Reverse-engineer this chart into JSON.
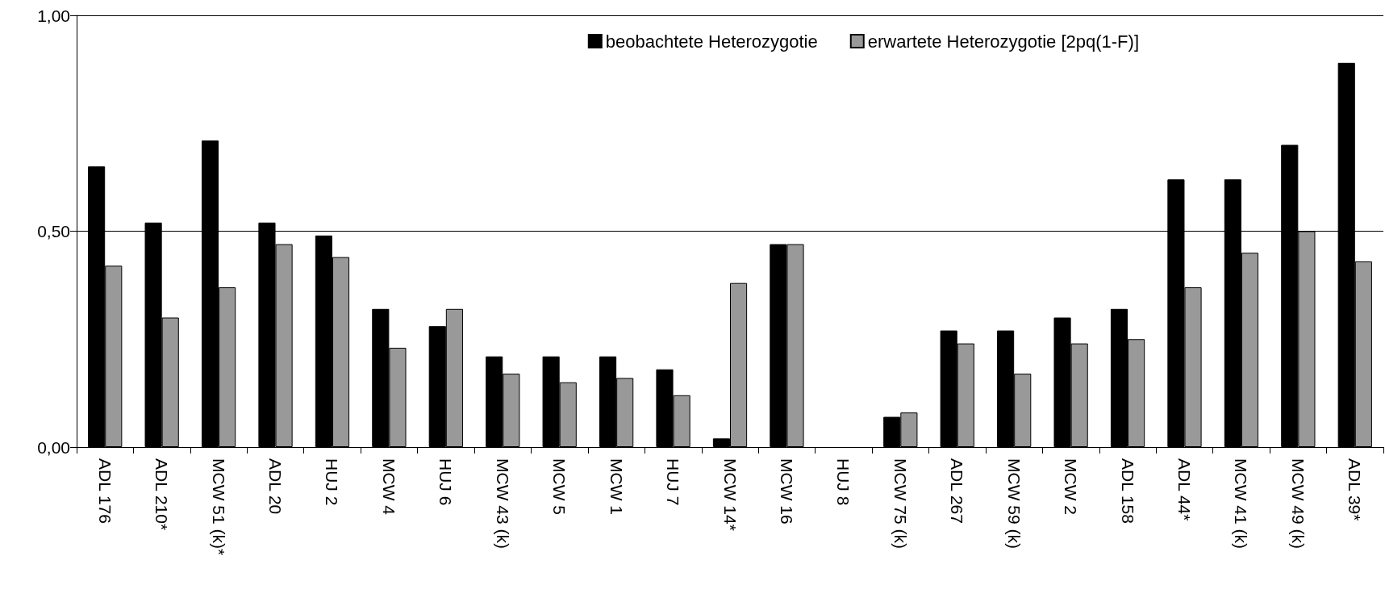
{
  "chart_data": {
    "type": "bar",
    "categories": [
      "ADL 176",
      "ADL 210*",
      "MCW 51 (k)*",
      "ADL 20",
      "HUJ 2",
      "MCW 4",
      "HUJ 6",
      "MCW 43 (k)",
      "MCW 5",
      "MCW 1",
      "HUJ 7",
      "MCW 14*",
      "MCW 16",
      "HUJ 8",
      "MCW 75 (k)",
      "ADL 267",
      "MCW 59 (k)",
      "MCW 2",
      "ADL 158",
      "ADL 44*",
      "MCW 41 (k)",
      "MCW 49 (k)",
      "ADL 39*"
    ],
    "series": [
      {
        "name": "beobachtete Heterozygotie",
        "color": "#000000",
        "values": [
          0.65,
          0.52,
          0.71,
          0.52,
          0.49,
          0.32,
          0.28,
          0.21,
          0.21,
          0.21,
          0.18,
          0.02,
          0.47,
          0,
          0.07,
          0.27,
          0.27,
          0.3,
          0.32,
          0.62,
          0.62,
          0.7,
          0.89
        ]
      },
      {
        "name": "erwartete Heterozygotie [2pq(1-F)]",
        "color": "#999999",
        "values": [
          0.42,
          0.3,
          0.37,
          0.47,
          0.44,
          0.23,
          0.32,
          0.17,
          0.15,
          0.16,
          0.12,
          0.38,
          0.47,
          0,
          0.08,
          0.24,
          0.17,
          0.24,
          0.25,
          0.37,
          0.45,
          0.5,
          0.43
        ]
      }
    ],
    "ylim": [
      0,
      1
    ],
    "yticks": [
      {
        "value": 0,
        "label": "0,00"
      },
      {
        "value": 0.5,
        "label": "0,50"
      },
      {
        "value": 1,
        "label": "1,00"
      }
    ],
    "grid": "y",
    "legend": "top right"
  }
}
